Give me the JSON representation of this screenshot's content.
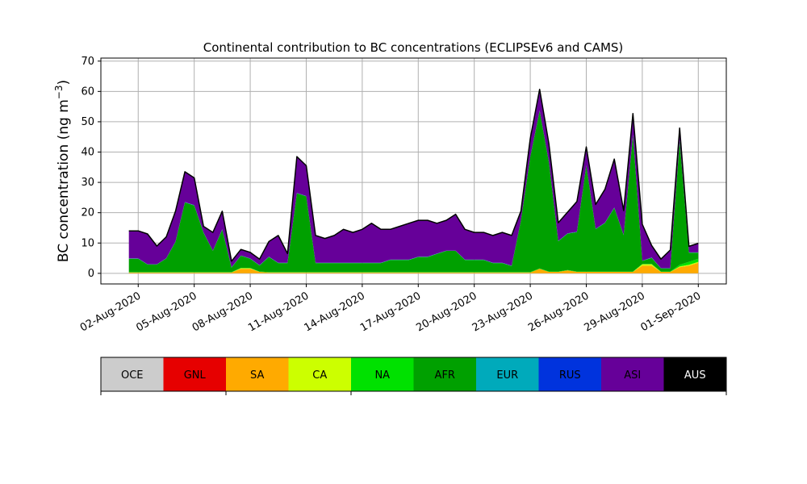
{
  "chart_data": {
    "type": "area",
    "title": "Continental contribution to BC concentrations (ECLIPSEv6 and CAMS)",
    "ylabel_text": "BC concentration (ng m",
    "ylabel_exp": "−3",
    "ylabel_close": ")",
    "xlabel": "",
    "ylim": [
      -3.5,
      71
    ],
    "xlim": [
      "2020-07-31T00:00",
      "2020-09-02T12:00"
    ],
    "grid": true,
    "stacked": true,
    "x_ticks": [
      "02-Aug-2020",
      "05-Aug-2020",
      "08-Aug-2020",
      "11-Aug-2020",
      "14-Aug-2020",
      "17-Aug-2020",
      "20-Aug-2020",
      "23-Aug-2020",
      "26-Aug-2020",
      "29-Aug-2020",
      "01-Sep-2020"
    ],
    "x_tick_dates": [
      "2020-08-02",
      "2020-08-05",
      "2020-08-08",
      "2020-08-11",
      "2020-08-14",
      "2020-08-17",
      "2020-08-20",
      "2020-08-23",
      "2020-08-26",
      "2020-08-29",
      "2020-09-01"
    ],
    "y_ticks": [
      0,
      10,
      20,
      30,
      40,
      50,
      60,
      70
    ],
    "x": [
      "2020-08-01T12:00",
      "2020-08-02T00:00",
      "2020-08-02T12:00",
      "2020-08-03T00:00",
      "2020-08-03T12:00",
      "2020-08-04T00:00",
      "2020-08-04T12:00",
      "2020-08-05T00:00",
      "2020-08-05T12:00",
      "2020-08-06T00:00",
      "2020-08-06T12:00",
      "2020-08-07T00:00",
      "2020-08-07T12:00",
      "2020-08-08T00:00",
      "2020-08-08T12:00",
      "2020-08-09T00:00",
      "2020-08-09T12:00",
      "2020-08-10T00:00",
      "2020-08-10T12:00",
      "2020-08-11T00:00",
      "2020-08-11T12:00",
      "2020-08-12T00:00",
      "2020-08-12T12:00",
      "2020-08-13T00:00",
      "2020-08-13T12:00",
      "2020-08-14T00:00",
      "2020-08-14T12:00",
      "2020-08-15T00:00",
      "2020-08-15T12:00",
      "2020-08-16T00:00",
      "2020-08-16T12:00",
      "2020-08-17T00:00",
      "2020-08-17T12:00",
      "2020-08-18T00:00",
      "2020-08-18T12:00",
      "2020-08-19T00:00",
      "2020-08-19T12:00",
      "2020-08-20T00:00",
      "2020-08-20T12:00",
      "2020-08-21T00:00",
      "2020-08-21T12:00",
      "2020-08-22T00:00",
      "2020-08-22T12:00",
      "2020-08-23T00:00",
      "2020-08-23T12:00",
      "2020-08-24T00:00",
      "2020-08-24T12:00",
      "2020-08-25T00:00",
      "2020-08-25T12:00",
      "2020-08-26T00:00",
      "2020-08-26T12:00",
      "2020-08-27T00:00",
      "2020-08-27T12:00",
      "2020-08-28T00:00",
      "2020-08-28T12:00",
      "2020-08-29T00:00",
      "2020-08-29T12:00",
      "2020-08-30T00:00",
      "2020-08-30T12:00",
      "2020-08-31T00:00",
      "2020-08-31T12:00",
      "2020-09-01T00:00"
    ],
    "series": [
      {
        "name": "OCE",
        "color": "#cccccc",
        "values": [
          0,
          0,
          0,
          0,
          0,
          0,
          0,
          0,
          0,
          0,
          0,
          0,
          0,
          0,
          0,
          0,
          0,
          0,
          0,
          0,
          0,
          0,
          0,
          0,
          0,
          0,
          0,
          0,
          0,
          0,
          0,
          0,
          0,
          0,
          0,
          0,
          0,
          0,
          0,
          0,
          0,
          0,
          0,
          0,
          0,
          0,
          0,
          0,
          0,
          0,
          0,
          0,
          0,
          0,
          0,
          0,
          0,
          0,
          0,
          0,
          0,
          0
        ]
      },
      {
        "name": "GNL",
        "color": "#e60000",
        "values": [
          0,
          0,
          0,
          0,
          0,
          0,
          0,
          0,
          0,
          0,
          0,
          0,
          0,
          0,
          0,
          0,
          0,
          0,
          0,
          0,
          0,
          0,
          0,
          0,
          0,
          0,
          0,
          0,
          0,
          0,
          0,
          0,
          0,
          0,
          0,
          0,
          0,
          0,
          0,
          0,
          0,
          0,
          0,
          0,
          0,
          0,
          0,
          0,
          0,
          0,
          0,
          0,
          0,
          0,
          0,
          0,
          0,
          0,
          0,
          0,
          0,
          0
        ]
      },
      {
        "name": "SA",
        "color": "#ffaa00",
        "values": [
          0.3,
          0.3,
          0.3,
          0.3,
          0.3,
          0.3,
          0.3,
          0.3,
          0.3,
          0.3,
          0.3,
          0.3,
          1.5,
          1.5,
          0.5,
          0.3,
          0.3,
          0.3,
          0.3,
          0.3,
          0.3,
          0.3,
          0.3,
          0.3,
          0.3,
          0.3,
          0.3,
          0.3,
          0.3,
          0.3,
          0.3,
          0.3,
          0.3,
          0.3,
          0.3,
          0.3,
          0.3,
          0.3,
          0.3,
          0.3,
          0.3,
          0.3,
          0.3,
          0.3,
          1.5,
          0.5,
          0.5,
          1.0,
          0.5,
          0.5,
          0.5,
          0.5,
          0.5,
          0.5,
          0.5,
          2.5,
          2.5,
          0.5,
          0.5,
          2.0,
          2.5,
          3.5
        ]
      },
      {
        "name": "CA",
        "color": "#ccff00",
        "values": [
          0,
          0,
          0,
          0,
          0,
          0,
          0,
          0,
          0,
          0,
          0,
          0,
          0.2,
          0.2,
          0,
          0,
          0,
          0,
          0,
          0,
          0,
          0,
          0,
          0,
          0,
          0,
          0,
          0,
          0,
          0,
          0,
          0,
          0,
          0,
          0,
          0,
          0,
          0,
          0,
          0,
          0,
          0,
          0,
          0,
          0,
          0,
          0,
          0,
          0,
          0,
          0,
          0,
          0,
          0,
          0,
          0.5,
          0.5,
          0,
          0,
          0.3,
          0.3,
          0.3
        ]
      },
      {
        "name": "NA",
        "color": "#00e100",
        "values": [
          0.1,
          0.1,
          0.1,
          0.1,
          0.1,
          0.1,
          0.1,
          0.1,
          0.1,
          0.1,
          0.1,
          0.1,
          0.1,
          0.1,
          0.1,
          0.1,
          0.1,
          0.1,
          0.1,
          0.1,
          0.1,
          0.1,
          0.1,
          0.1,
          0.1,
          0.1,
          0.1,
          0.1,
          0.1,
          0.1,
          0.1,
          0.1,
          0.1,
          0.1,
          0.1,
          0.1,
          0.1,
          0.1,
          0.1,
          0.1,
          0.1,
          0.1,
          0.1,
          0.1,
          0.1,
          0.1,
          0.1,
          0.1,
          0.1,
          0.1,
          0.1,
          0.1,
          0.1,
          0.1,
          0.1,
          0.1,
          0.1,
          0.1,
          0.1,
          0.5,
          1.0,
          1.0
        ]
      },
      {
        "name": "AFR",
        "color": "#00a000",
        "values": [
          4.4,
          4.4,
          2.5,
          2.5,
          4.5,
          10,
          23,
          22,
          13,
          7,
          14,
          1.5,
          4,
          3,
          2,
          5,
          3,
          3,
          26,
          25,
          3,
          3,
          3,
          3,
          3,
          3,
          3,
          3,
          4,
          4,
          4,
          5,
          5,
          6,
          7,
          7,
          4,
          4,
          4,
          3,
          3,
          2,
          17,
          38,
          52,
          36,
          10,
          12,
          13,
          35,
          14,
          16,
          21,
          12,
          45,
          1,
          2,
          1,
          1,
          41,
          3,
          2
        ]
      },
      {
        "name": "EUR",
        "color": "#00aabb",
        "values": [
          0.1,
          0.1,
          0.1,
          0.1,
          0.1,
          0.1,
          0.1,
          0.1,
          0.1,
          0.1,
          0.1,
          0.1,
          0.1,
          0.1,
          0.1,
          0.1,
          0.1,
          0.1,
          0.1,
          0.1,
          0.1,
          0.1,
          0.1,
          0.1,
          0.1,
          0.1,
          0.1,
          0.1,
          0.1,
          0.1,
          0.1,
          0.1,
          0.1,
          0.1,
          0.1,
          0.1,
          0.1,
          0.1,
          0.1,
          0.1,
          0.1,
          0.1,
          0.1,
          0.1,
          0.1,
          0.1,
          0.1,
          0.1,
          0.1,
          0.1,
          0.1,
          0.1,
          0.1,
          0.1,
          0.1,
          0.1,
          0.1,
          0.1,
          0.1,
          0.1,
          0.1,
          0.1
        ]
      },
      {
        "name": "RUS",
        "color": "#0033dd",
        "values": [
          0,
          0,
          0,
          0,
          0,
          0,
          0,
          0,
          0,
          0,
          0,
          0,
          0,
          0,
          0,
          0,
          0,
          0,
          0,
          0,
          0,
          0,
          0,
          0,
          0,
          0,
          0,
          0,
          0,
          0,
          0,
          0,
          0,
          0,
          0,
          0,
          0,
          0,
          0,
          0,
          0,
          0,
          0,
          0,
          0,
          0,
          0,
          0,
          0,
          0,
          0,
          0,
          0,
          0,
          0,
          0,
          0,
          0,
          0,
          0,
          0,
          0
        ]
      },
      {
        "name": "ASI",
        "color": "#660099",
        "values": [
          9.1,
          9.1,
          10,
          6,
          7,
          10,
          10,
          9,
          2,
          6,
          6,
          2,
          2,
          2,
          2,
          5,
          9,
          3,
          12,
          10,
          9,
          8,
          9,
          11,
          10,
          11,
          13,
          11,
          10,
          11,
          12,
          12,
          12,
          10,
          10,
          12,
          10,
          9,
          9,
          9,
          10,
          10,
          3,
          6,
          7,
          6,
          6,
          7,
          10,
          6,
          8,
          11,
          16,
          8,
          7,
          12,
          4,
          3,
          6,
          4,
          2,
          3
        ]
      },
      {
        "name": "AUS",
        "color": "#000000",
        "values": [
          0,
          0,
          0,
          0,
          0,
          0,
          0,
          0,
          0,
          0,
          0,
          0,
          0,
          0,
          0,
          0,
          0,
          0,
          0,
          0,
          0,
          0,
          0,
          0,
          0,
          0,
          0,
          0,
          0,
          0,
          0,
          0,
          0,
          0,
          0,
          0,
          0,
          0,
          0,
          0,
          0,
          0,
          0,
          0,
          0,
          0,
          0,
          0,
          0,
          0,
          0,
          0,
          0,
          0,
          0,
          0,
          0,
          0,
          0,
          0,
          0,
          0
        ]
      }
    ],
    "legend": {
      "placement": "below",
      "entries": [
        {
          "label": "OCE",
          "color": "#cccccc"
        },
        {
          "label": "GNL",
          "color": "#e60000"
        },
        {
          "label": "SA",
          "color": "#ffaa00"
        },
        {
          "label": "CA",
          "color": "#ccff00"
        },
        {
          "label": "NA",
          "color": "#00e100"
        },
        {
          "label": "AFR",
          "color": "#00a000"
        },
        {
          "label": "EUR",
          "color": "#00aabb"
        },
        {
          "label": "RUS",
          "color": "#0033dd"
        },
        {
          "label": "ASI",
          "color": "#660099"
        },
        {
          "label": "AUS",
          "color": "#000000"
        }
      ]
    }
  }
}
